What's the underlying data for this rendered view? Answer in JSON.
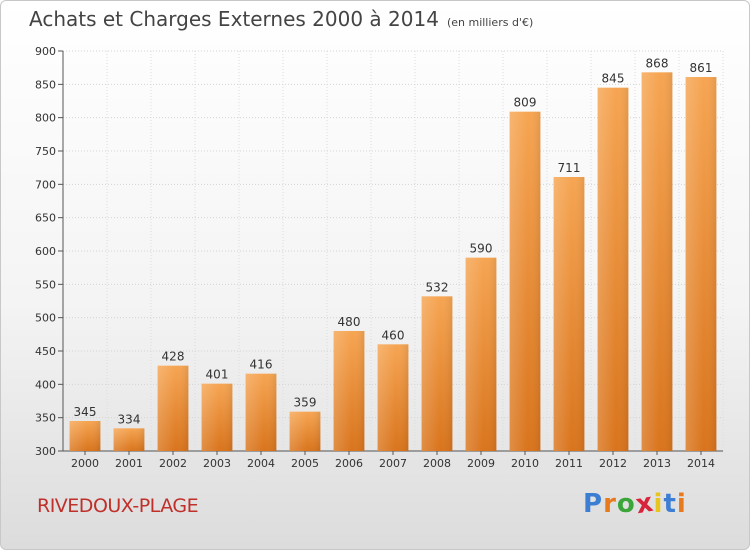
{
  "title": "Achats et Charges Externes 2000 à 2014",
  "unit": "(en milliers d'€)",
  "place": "RIVEDOUX-PLAGE",
  "logo": {
    "letters": [
      "P",
      "r",
      "o",
      "x",
      "i",
      "t",
      "i"
    ],
    "colors": [
      "#3c7ed3",
      "#e87a1e",
      "#3aa63a",
      "#d8243a",
      "#e8c41e",
      "#3c7ed3",
      "#e87a1e"
    ]
  },
  "chart_data": {
    "type": "bar",
    "title": "Achats et Charges Externes 2000 à 2014",
    "categories": [
      "2000",
      "2001",
      "2002",
      "2003",
      "2004",
      "2005",
      "2006",
      "2007",
      "2008",
      "2009",
      "2010",
      "2011",
      "2012",
      "2013",
      "2014"
    ],
    "values": [
      345,
      334,
      428,
      401,
      416,
      359,
      480,
      460,
      532,
      590,
      809,
      711,
      845,
      868,
      861
    ],
    "ylim": [
      300,
      900
    ],
    "yticks": [
      300,
      350,
      400,
      450,
      500,
      550,
      600,
      650,
      700,
      750,
      800,
      850,
      900
    ],
    "grid": true,
    "bar_color": "#f0922e"
  }
}
